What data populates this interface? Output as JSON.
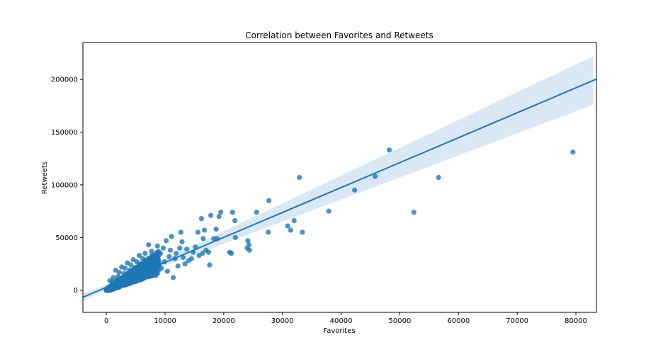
{
  "chart_data": {
    "type": "scatter",
    "title": "Correlation between Favorites and Retweets",
    "xlabel": "Favorites",
    "ylabel": "Retweets",
    "xlim": [
      -4000,
      83500
    ],
    "ylim": [
      -21000,
      235000
    ],
    "x_ticks": [
      0,
      10000,
      20000,
      30000,
      40000,
      50000,
      60000,
      70000,
      80000
    ],
    "x_tick_labels": [
      "0",
      "10000",
      "20000",
      "30000",
      "40000",
      "50000",
      "60000",
      "70000",
      "80000"
    ],
    "y_ticks": [
      0,
      50000,
      100000,
      150000,
      200000
    ],
    "y_tick_labels": [
      "0",
      "50000",
      "100000",
      "150000",
      "200000"
    ],
    "grid": false,
    "colors": {
      "points": "#1f77b4",
      "line": "#1f77b4",
      "band": "#c6dbef"
    },
    "regression": {
      "slope": 2.365,
      "intercept": 2800,
      "band_halfwidth_at_mean": 1500,
      "band_halfwidth_growth": 0.2725
    },
    "points": [
      [
        79500,
        131000
      ],
      [
        48200,
        133000
      ],
      [
        56600,
        107000
      ],
      [
        52400,
        74000
      ],
      [
        45800,
        108000
      ],
      [
        42300,
        95000
      ],
      [
        37900,
        75000
      ],
      [
        33400,
        55000
      ],
      [
        32900,
        107000
      ],
      [
        32000,
        66000
      ],
      [
        31400,
        57000
      ],
      [
        30900,
        61000
      ],
      [
        27700,
        85000
      ],
      [
        27600,
        55000
      ],
      [
        25600,
        74000
      ],
      [
        24400,
        38000
      ],
      [
        24300,
        43000
      ],
      [
        24100,
        47000
      ],
      [
        24000,
        40000
      ],
      [
        22000,
        50000
      ],
      [
        21900,
        66000
      ],
      [
        21500,
        74000
      ],
      [
        21300,
        35000
      ],
      [
        21000,
        36000
      ],
      [
        19500,
        74000
      ],
      [
        19200,
        70000
      ],
      [
        18900,
        49000
      ],
      [
        18700,
        58000
      ],
      [
        18300,
        49000
      ],
      [
        17800,
        71000
      ],
      [
        17600,
        24000
      ],
      [
        17400,
        36000
      ],
      [
        17000,
        38000
      ],
      [
        16700,
        57000
      ],
      [
        16500,
        49000
      ],
      [
        16400,
        35000
      ],
      [
        16200,
        68000
      ],
      [
        15800,
        33000
      ],
      [
        15600,
        55000
      ],
      [
        15200,
        41000
      ],
      [
        14800,
        36000
      ],
      [
        14500,
        30000
      ],
      [
        14000,
        28000
      ],
      [
        13700,
        39000
      ],
      [
        13400,
        25000
      ],
      [
        13100,
        31000
      ],
      [
        12900,
        46000
      ],
      [
        12700,
        55000
      ],
      [
        12500,
        40000
      ],
      [
        12200,
        23000
      ],
      [
        11900,
        35000
      ],
      [
        11700,
        30000
      ],
      [
        11400,
        12000
      ],
      [
        11100,
        51000
      ],
      [
        10900,
        38000
      ],
      [
        10700,
        32000
      ],
      [
        10400,
        18000
      ],
      [
        10200,
        47000
      ],
      [
        9900,
        27000
      ],
      [
        9700,
        40000
      ],
      [
        9400,
        21000
      ],
      [
        9200,
        35000
      ],
      [
        8900,
        28000
      ],
      [
        8700,
        42000
      ],
      [
        8400,
        14000
      ],
      [
        8200,
        31000
      ],
      [
        7900,
        24000
      ],
      [
        7700,
        37000
      ],
      [
        7400,
        18000
      ],
      [
        7200,
        43000
      ],
      [
        7000,
        28000
      ],
      [
        6800,
        22000
      ],
      [
        6600,
        35000
      ],
      [
        6400,
        15000
      ],
      [
        6200,
        30000
      ],
      [
        6000,
        25000
      ],
      [
        5800,
        18000
      ],
      [
        5600,
        33000
      ],
      [
        5400,
        12000
      ],
      [
        5200,
        27000
      ],
      [
        5000,
        21000
      ],
      [
        4800,
        16000
      ],
      [
        4600,
        29000
      ],
      [
        4400,
        11000
      ],
      [
        4200,
        24000
      ],
      [
        4000,
        19000
      ],
      [
        3800,
        14000
      ],
      [
        3600,
        26000
      ],
      [
        3400,
        9000
      ],
      [
        3200,
        21000
      ],
      [
        3000,
        16000
      ],
      [
        2800,
        12000
      ],
      [
        2600,
        22000
      ],
      [
        2400,
        7000
      ],
      [
        2200,
        17000
      ],
      [
        2000,
        13000
      ],
      [
        1800,
        9000
      ],
      [
        1600,
        19000
      ],
      [
        1400,
        5000
      ],
      [
        1200,
        12000
      ],
      [
        1000,
        8000
      ],
      [
        800,
        4000
      ],
      [
        600,
        9000
      ],
      [
        400,
        2000
      ],
      [
        200,
        1000
      ],
      [
        0,
        500
      ]
    ],
    "cluster": {
      "count": 700,
      "x_max": 9000,
      "slope": 3.0
    }
  }
}
